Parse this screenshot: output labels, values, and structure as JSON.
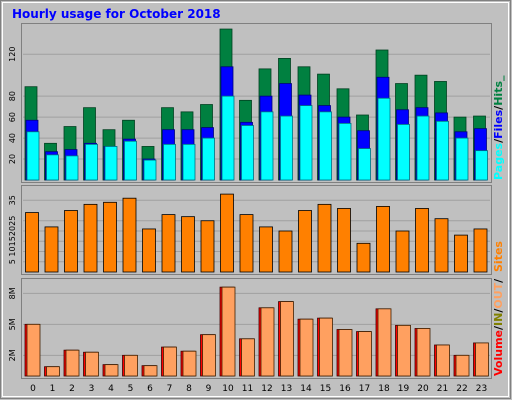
{
  "chart_data": [
    {
      "type": "bar",
      "title": "Hourly usage for October 2018",
      "categories": [
        "0",
        "1",
        "2",
        "3",
        "4",
        "5",
        "6",
        "7",
        "8",
        "9",
        "10",
        "11",
        "12",
        "13",
        "14",
        "15",
        "16",
        "17",
        "18",
        "19",
        "20",
        "21",
        "22",
        "23"
      ],
      "series": [
        {
          "name": "Hits",
          "color": "#008040",
          "values": [
            89,
            35,
            51,
            69,
            48,
            57,
            32,
            69,
            65,
            72,
            144,
            76,
            106,
            116,
            108,
            101,
            87,
            62,
            124,
            92,
            100,
            94,
            60,
            61
          ]
        },
        {
          "name": "Files",
          "color": "#0000ff",
          "values": [
            57,
            27,
            29,
            35,
            32,
            39,
            20,
            48,
            48,
            50,
            108,
            55,
            80,
            92,
            81,
            71,
            60,
            47,
            98,
            67,
            69,
            64,
            46,
            49
          ]
        },
        {
          "name": "Pages",
          "color": "#00ffff",
          "values": [
            46,
            24,
            23,
            34,
            32,
            37,
            19,
            34,
            34,
            40,
            80,
            52,
            65,
            61,
            71,
            65,
            54,
            30,
            78,
            53,
            61,
            56,
            40,
            28
          ]
        }
      ],
      "ylim": [
        0,
        145
      ],
      "yticks": [
        "20",
        "40",
        "60",
        "80",
        "120"
      ],
      "legend": {
        "pages": "Pages",
        "sep1": "/",
        "files": "Files",
        "sep2": "/",
        "hits": "Hits_"
      },
      "grid": true
    },
    {
      "type": "bar",
      "categories": [
        "0",
        "1",
        "2",
        "3",
        "4",
        "5",
        "6",
        "7",
        "8",
        "9",
        "10",
        "11",
        "12",
        "13",
        "14",
        "15",
        "16",
        "17",
        "18",
        "19",
        "20",
        "21",
        "22",
        "23"
      ],
      "series": [
        {
          "name": "Sites",
          "color": "#ff8000",
          "values": [
            29,
            22,
            30,
            33,
            34,
            36,
            21,
            28,
            27,
            25,
            38,
            28,
            22,
            20,
            30,
            33,
            31,
            14,
            32,
            20,
            31,
            26,
            18,
            21
          ]
        }
      ],
      "ylim": [
        0,
        40
      ],
      "yticks": [
        "5",
        "10",
        "15",
        "20",
        "25",
        "35"
      ],
      "legend": {
        "sites": "Sites"
      },
      "grid": true
    },
    {
      "type": "bar",
      "categories": [
        "0",
        "1",
        "2",
        "3",
        "4",
        "5",
        "6",
        "7",
        "8",
        "9",
        "10",
        "11",
        "12",
        "13",
        "14",
        "15",
        "16",
        "17",
        "18",
        "19",
        "20",
        "21",
        "22",
        "23"
      ],
      "series": [
        {
          "name": "Volume",
          "color": "#ff0000",
          "values": [
            5.0,
            0.9,
            2.5,
            2.3,
            1.1,
            2.0,
            1.0,
            2.8,
            2.4,
            4.0,
            8.6,
            3.6,
            6.6,
            7.2,
            5.5,
            5.6,
            4.5,
            4.3,
            6.5,
            4.9,
            4.6,
            3.0,
            2.0,
            3.2
          ]
        },
        {
          "name": "IN",
          "color": "#808000",
          "values": [
            5.0,
            0.9,
            2.5,
            2.3,
            1.1,
            2.0,
            1.0,
            2.8,
            2.4,
            4.0,
            8.6,
            3.6,
            6.6,
            7.2,
            5.5,
            5.6,
            4.5,
            4.3,
            6.5,
            4.9,
            4.6,
            3.0,
            2.0,
            3.2
          ]
        },
        {
          "name": "OUT",
          "color": "#ffa060",
          "values": [
            5.0,
            0.9,
            2.5,
            2.3,
            1.1,
            2.0,
            1.0,
            2.8,
            2.4,
            4.0,
            8.6,
            3.6,
            6.6,
            7.2,
            5.5,
            5.6,
            4.5,
            4.3,
            6.5,
            4.9,
            4.6,
            3.0,
            2.0,
            3.2
          ]
        }
      ],
      "ylim": [
        0,
        9
      ],
      "yticks": [
        "2M",
        "5M",
        "8M"
      ],
      "legend": {
        "volume": "Volume",
        "sep1": "/",
        "in": "IN",
        "sep2": "/",
        "out": "OUT",
        "sep3": "/"
      },
      "grid": true
    }
  ],
  "colors": {
    "frame_bg": "#c0c0c0",
    "plot_bg": "#c0c0c0",
    "title": "#0000ff",
    "hits": "#008040",
    "files": "#0000ff",
    "pages": "#00ffff",
    "sites": "#ff8000",
    "volume": "#ff0000",
    "in": "#808000",
    "out": "#ffa060"
  }
}
